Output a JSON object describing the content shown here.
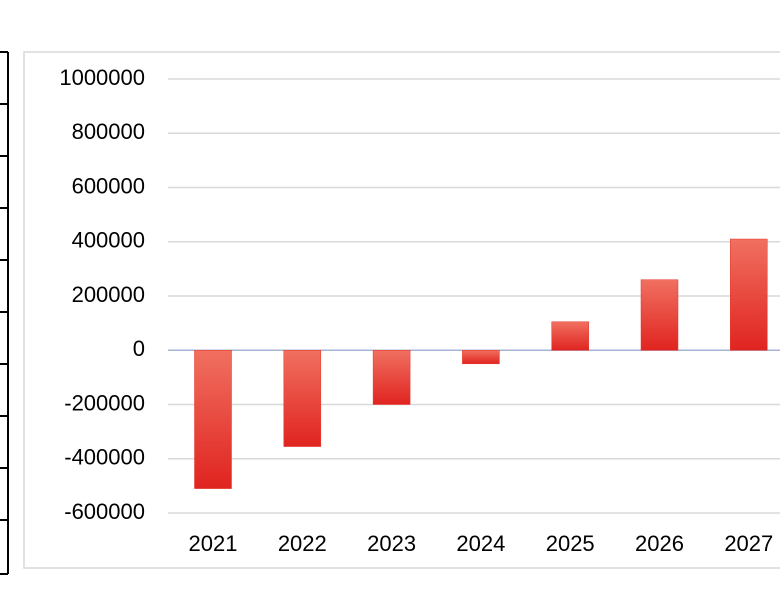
{
  "chart_data": {
    "type": "bar",
    "categories": [
      "2021",
      "2022",
      "2023",
      "2024",
      "2025",
      "2026",
      "2027"
    ],
    "values": [
      -510000,
      -355000,
      -200000,
      -50000,
      105000,
      260000,
      410000
    ],
    "color": "#e8332a",
    "ylim": [
      -600000,
      1000000
    ],
    "yticks": [
      -600000,
      -400000,
      -200000,
      0,
      200000,
      400000,
      600000,
      800000,
      1000000
    ],
    "grid": true
  }
}
